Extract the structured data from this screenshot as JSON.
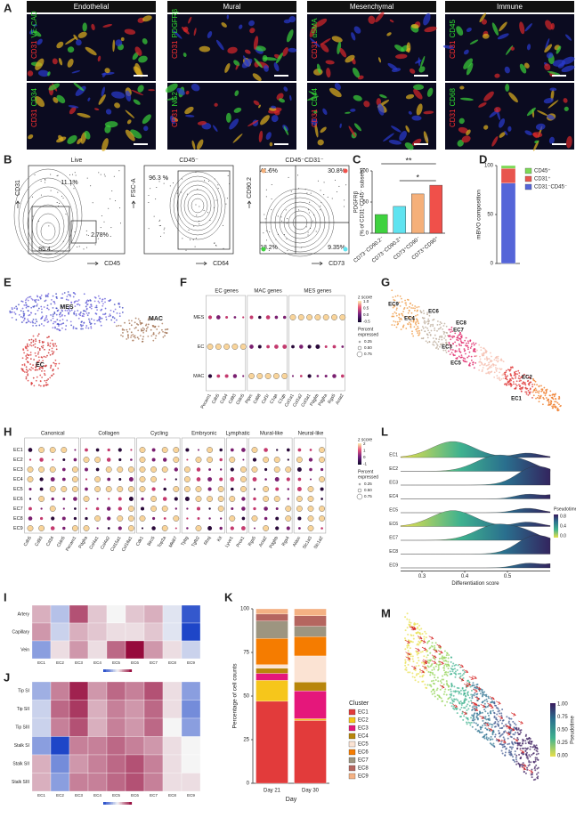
{
  "figure": {
    "panel_letters": [
      "A",
      "B",
      "C",
      "D",
      "E",
      "F",
      "G",
      "H",
      "I",
      "J",
      "K",
      "L",
      "M"
    ],
    "A": {
      "headers": [
        "Endothelial",
        "Mural",
        "Mesenchymal",
        "Immune"
      ],
      "stains": [
        [
          "CD31",
          "VE-CAD"
        ],
        [
          "CD31",
          "CD34"
        ],
        [
          "CD31",
          "PDGFRβ"
        ],
        [
          "CD31",
          "NG2"
        ],
        [
          "CD31",
          "αSMA"
        ],
        [
          "CD31",
          "CD44"
        ],
        [
          "CD31",
          "CD45"
        ],
        [
          "CD31",
          "CD68"
        ]
      ]
    },
    "B": {
      "plots": [
        {
          "title": "Live",
          "x": "CD45",
          "y": "CD31",
          "gates": [
            "11.1%",
            "2.78%",
            "85.4"
          ]
        },
        {
          "title": "CD45⁻",
          "x": "CD64",
          "y": "FSC-A",
          "gates": [
            "96.3 %"
          ]
        },
        {
          "title": "CD45⁻CD31⁻",
          "x": "CD73",
          "y": "CD90.2",
          "gates": [
            "41.6%",
            "30.8%",
            "18.2%",
            "9.35%"
          ]
        }
      ]
    },
    "E": {
      "labels": [
        "MES",
        "MAC",
        "EC"
      ]
    },
    "F": {
      "groups": [
        {
          "name": "EC genes",
          "genes": [
            "Pecam1",
            "Cdh5",
            "Cd34",
            "Cd93",
            "Cldn5"
          ]
        },
        {
          "name": "MAC genes",
          "genes": [
            "Ptprc",
            "Cd68",
            "Csf1r",
            "C1qa",
            "C1qb"
          ]
        },
        {
          "name": "MES genes",
          "genes": [
            "Col1a1",
            "Col1a2",
            "Col3a1",
            "Pdgfrb",
            "Pdgfra",
            "Rgs5",
            "Acta2"
          ]
        }
      ],
      "rows": [
        "MES",
        "EC",
        "MAC"
      ],
      "legend": {
        "color_title": "z score",
        "color_ticks": [
          "1.0",
          "0.5",
          "0.0",
          "-0.5"
        ],
        "size_title": [
          "Percent",
          "expressed"
        ],
        "size_ticks": [
          "0.25",
          "0.50",
          "0.75"
        ]
      }
    },
    "G": {
      "labels": [
        "EC9",
        "EC4",
        "EC6",
        "EC8",
        "EC7",
        "EC3",
        "EC5",
        "EC2",
        "EC1"
      ]
    },
    "H": {
      "groups": [
        {
          "name": "Canonical",
          "genes": [
            "Cdh5",
            "Cd93",
            "Cd34",
            "Cldn5",
            "Pecam1"
          ]
        },
        {
          "name": "Collagen",
          "genes": [
            "Pdgfra",
            "Col4a1",
            "Col4a2",
            "Col15a1",
            "Col18a1"
          ]
        },
        {
          "name": "Cycling",
          "genes": [
            "Cdk1",
            "Birc5",
            "Top2a",
            "Mki67"
          ]
        },
        {
          "name": "Embryonic",
          "genes": [
            "Tpbg",
            "Tgfb2",
            "Rhoj",
            "Kit"
          ]
        },
        {
          "name": "Lymphatic",
          "genes": [
            "Lyve1",
            "Prox1"
          ]
        },
        {
          "name": "Mural-like",
          "genes": [
            "Rgs5",
            "Acta2",
            "Pdgfrb",
            "Rgs4"
          ]
        },
        {
          "name": "Neural-like",
          "genes": [
            "Aldoc",
            "Slc1a3",
            "Slc1a2"
          ]
        }
      ],
      "rows": [
        "EC1",
        "EC2",
        "EC3",
        "EC4",
        "EC5",
        "EC6",
        "EC7",
        "EC8",
        "EC9"
      ],
      "legend": {
        "color_title": "z score",
        "color_ticks": [
          "2",
          "1",
          "0",
          "-1"
        ],
        "size_title": [
          "Percent",
          "expressed"
        ],
        "size_ticks": [
          "0.25",
          "0.50",
          "0.75"
        ]
      }
    },
    "L": {
      "rows": [
        "EC1",
        "EC2",
        "EC3",
        "EC4",
        "EC5",
        "EC6",
        "EC7",
        "EC8",
        "EC9"
      ],
      "xlabel": "Differentiation score",
      "xlim": [
        0.25,
        0.6
      ],
      "xticks": [
        0.3,
        0.4,
        0.5
      ],
      "legend_title": "Pseudotime",
      "legend_ticks": [
        "0.8",
        "0.4",
        "0.0"
      ]
    },
    "M": {
      "legend_title": "Pseudotime",
      "legend_ticks": [
        "1.00",
        "0.75",
        "0.50",
        "0.25",
        "0.00"
      ]
    }
  },
  "chart_data": [
    {
      "type": "bar",
      "ylabel": [
        "PDGFRβ",
        "(% of CD31⁻CD45⁻ subsets)"
      ],
      "categories": [
        "CD73⁻CD90.2⁻",
        "CD73⁻CD90.2⁺",
        "CD73⁺CD90⁻",
        "CD73⁺CD90⁺"
      ],
      "values": [
        30,
        43,
        63,
        77
      ],
      "colors": [
        "#3fd23f",
        "#5fe3f0",
        "#f5b07a",
        "#f0504a"
      ],
      "ylim": [
        0,
        100
      ],
      "yticks": [
        0,
        50,
        100
      ],
      "annotations": [
        "**",
        "*"
      ]
    },
    {
      "type": "stacked_bar",
      "ylabel": "mBVO composition",
      "series": [
        {
          "name": "CD31⁻CD45⁻",
          "color": "#5565d8",
          "values": [
            82
          ]
        },
        {
          "name": "CD31⁺",
          "color": "#e8554e",
          "values": [
            15
          ]
        },
        {
          "name": "CD45⁺",
          "color": "#7ed957",
          "values": [
            3
          ]
        }
      ],
      "ylim": [
        0,
        100
      ],
      "yticks": [
        0,
        50,
        100
      ]
    },
    {
      "type": "heatmap",
      "rows": [
        "Artery",
        "Capillary",
        "Vein"
      ],
      "columns": [
        "EC1",
        "EC2",
        "EC3",
        "EC4",
        "EC5",
        "EC6",
        "EC7",
        "EC8",
        "EC9"
      ],
      "vlim": [
        -1,
        1
      ],
      "values": [
        [
          0.3,
          -0.3,
          0.7,
          0.2,
          0,
          0.2,
          0.3,
          -0.1,
          -0.9
        ],
        [
          0.4,
          -0.2,
          0.3,
          0.2,
          0.1,
          0.1,
          0.2,
          -0.1,
          -1
        ],
        [
          -0.5,
          0.1,
          0.4,
          0.1,
          0.6,
          1,
          0.4,
          0.1,
          -0.2
        ]
      ]
    },
    {
      "type": "heatmap",
      "rows": [
        "Tip SI",
        "Tip SII",
        "Tip SIII",
        "Stalk SI",
        "Stalk SII",
        "Stalk SIII"
      ],
      "columns": [
        "EC1",
        "EC2",
        "EC3",
        "EC4",
        "EC5",
        "EC6",
        "EC7",
        "EC8",
        "EC9"
      ],
      "vlim": [
        -1,
        1
      ],
      "values": [
        [
          -0.4,
          0.5,
          0.9,
          0.4,
          0.6,
          0.5,
          0.7,
          0.1,
          -0.5
        ],
        [
          -0.2,
          0.6,
          0.8,
          0.3,
          0.5,
          0.4,
          0.6,
          0.1,
          -0.6
        ],
        [
          -0.2,
          0.5,
          0.7,
          0.3,
          0.5,
          0.4,
          0.6,
          0,
          -0.5
        ],
        [
          -0.5,
          -1,
          0.5,
          0.5,
          0.6,
          0.5,
          0.4,
          0.1,
          0
        ],
        [
          0.3,
          -0.6,
          0.4,
          0.5,
          0.6,
          0.7,
          0.5,
          0.1,
          0
        ],
        [
          0.3,
          -0.5,
          0.5,
          0.5,
          0.6,
          0.7,
          0.5,
          0.1,
          0.1
        ]
      ]
    },
    {
      "type": "stacked_bar",
      "xlabel": "Day",
      "ylabel": "Percentage of cell counts",
      "legend_title": "Cluster",
      "categories": [
        "Day 21",
        "Day 30"
      ],
      "series": [
        {
          "name": "EC1",
          "color": "#e23b3b",
          "values": [
            47,
            36
          ]
        },
        {
          "name": "EC2",
          "color": "#f6c61b",
          "values": [
            12,
            1
          ]
        },
        {
          "name": "EC3",
          "color": "#e5177b",
          "values": [
            4,
            16
          ]
        },
        {
          "name": "EC4",
          "color": "#b8860b",
          "values": [
            3,
            5
          ]
        },
        {
          "name": "EC5",
          "color": "#fbe3d3",
          "values": [
            2,
            15
          ]
        },
        {
          "name": "EC6",
          "color": "#f57c00",
          "values": [
            15,
            11
          ]
        },
        {
          "name": "EC7",
          "color": "#9d9580",
          "values": [
            10,
            6
          ]
        },
        {
          "name": "EC8",
          "color": "#b5665f",
          "values": [
            4,
            6
          ]
        },
        {
          "name": "EC9",
          "color": "#f4b183",
          "values": [
            3,
            4
          ]
        }
      ],
      "ylim": [
        0,
        100
      ],
      "yticks": [
        0,
        25,
        50,
        75,
        100
      ]
    }
  ]
}
